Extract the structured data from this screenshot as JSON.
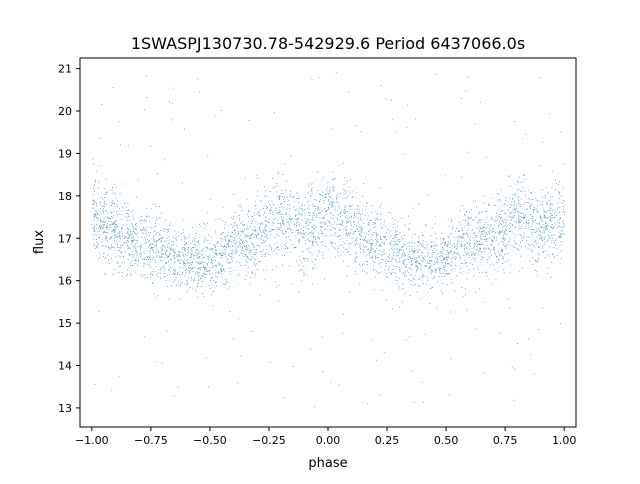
{
  "chart_data": {
    "type": "scatter",
    "title": "1SWASPJ130730.78-542929.6 Period 6437066.0s",
    "xlabel": "phase",
    "ylabel": "flux",
    "xlim": [
      -1.05,
      1.05
    ],
    "ylim": [
      12.55,
      21.25
    ],
    "xticks": [
      -1.0,
      -0.75,
      -0.5,
      -0.25,
      0.0,
      0.25,
      0.5,
      0.75,
      1.0
    ],
    "xtick_labels": [
      "−1.00",
      "−0.75",
      "−0.50",
      "−0.25",
      "0.00",
      "0.25",
      "0.50",
      "0.75",
      "1.00"
    ],
    "yticks": [
      13,
      14,
      15,
      16,
      17,
      18,
      19,
      20,
      21
    ],
    "ytick_labels": [
      "13",
      "14",
      "15",
      "16",
      "17",
      "18",
      "19",
      "20",
      "21"
    ],
    "grid": false,
    "marker_color": "#1f77b4",
    "series": [
      {
        "phase_curve": {
          "x": [
            -1.0,
            -0.9,
            -0.8,
            -0.7,
            -0.6,
            -0.5,
            -0.4,
            -0.3,
            -0.2,
            -0.1,
            0.0,
            0.1,
            0.2,
            0.3,
            0.4,
            0.5,
            0.6,
            0.7,
            0.8,
            0.9,
            1.0
          ],
          "mean": [
            17.5,
            17.2,
            16.9,
            16.7,
            16.5,
            16.4,
            16.9,
            17.0,
            17.5,
            17.2,
            17.6,
            17.2,
            16.9,
            16.7,
            16.5,
            16.5,
            16.9,
            17.0,
            17.5,
            17.2,
            17.5
          ],
          "spread": [
            0.75,
            0.8,
            0.7,
            0.65,
            0.6,
            0.6,
            0.7,
            0.75,
            0.8,
            0.75,
            0.8,
            0.8,
            0.7,
            0.65,
            0.6,
            0.6,
            0.7,
            0.75,
            0.8,
            0.75,
            0.75
          ]
        },
        "n_points": 14000,
        "flux_range": [
          13.0,
          21.0
        ],
        "phase_range": [
          -1.0,
          1.0
        ]
      }
    ]
  }
}
